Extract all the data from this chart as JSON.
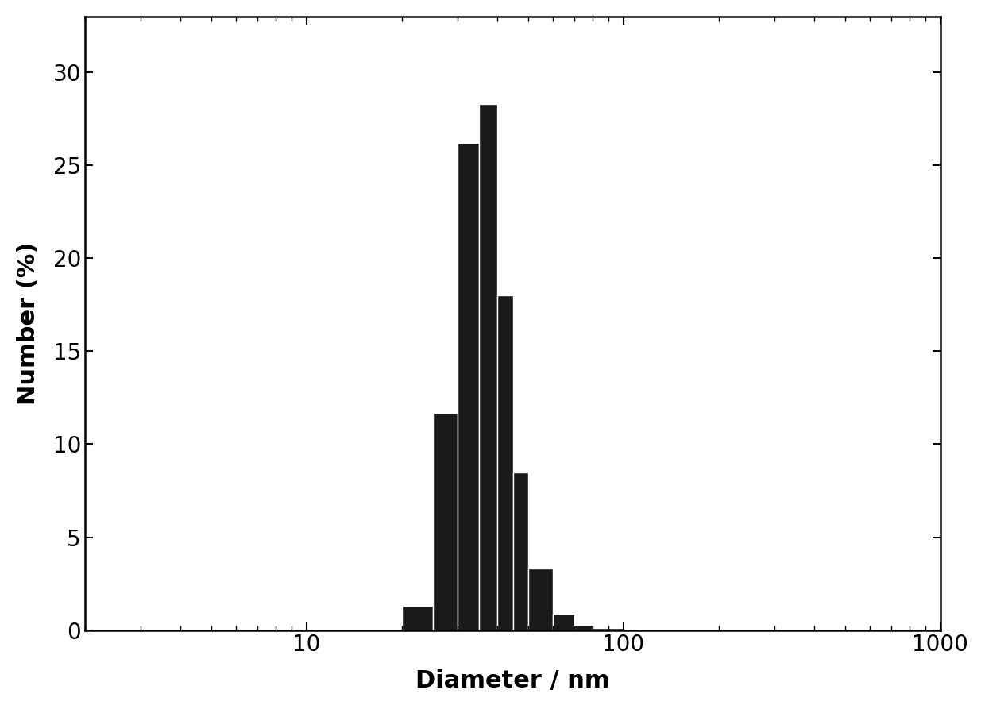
{
  "title": "",
  "xlabel": "Diameter / nm",
  "ylabel": "Number (%)",
  "bar_color": "#1a1a1a",
  "bar_edge_color": "#ffffff",
  "background_color": "#ffffff",
  "xlim_log": [
    3,
    1000
  ],
  "ylim": [
    0,
    33
  ],
  "yticks": [
    0,
    5,
    10,
    15,
    20,
    25,
    30
  ],
  "bar_edges": [
    20,
    25,
    30,
    35,
    40,
    45,
    50,
    60,
    70,
    80,
    100,
    130
  ],
  "bar_heights": [
    1.3,
    11.7,
    26.2,
    28.3,
    18.0,
    8.5,
    3.3,
    0.9,
    0.3,
    0.1,
    0.0
  ],
  "xlabel_fontsize": 22,
  "ylabel_fontsize": 22,
  "tick_fontsize": 20,
  "spine_linewidth": 1.8,
  "bar_linewidth": 1.0
}
